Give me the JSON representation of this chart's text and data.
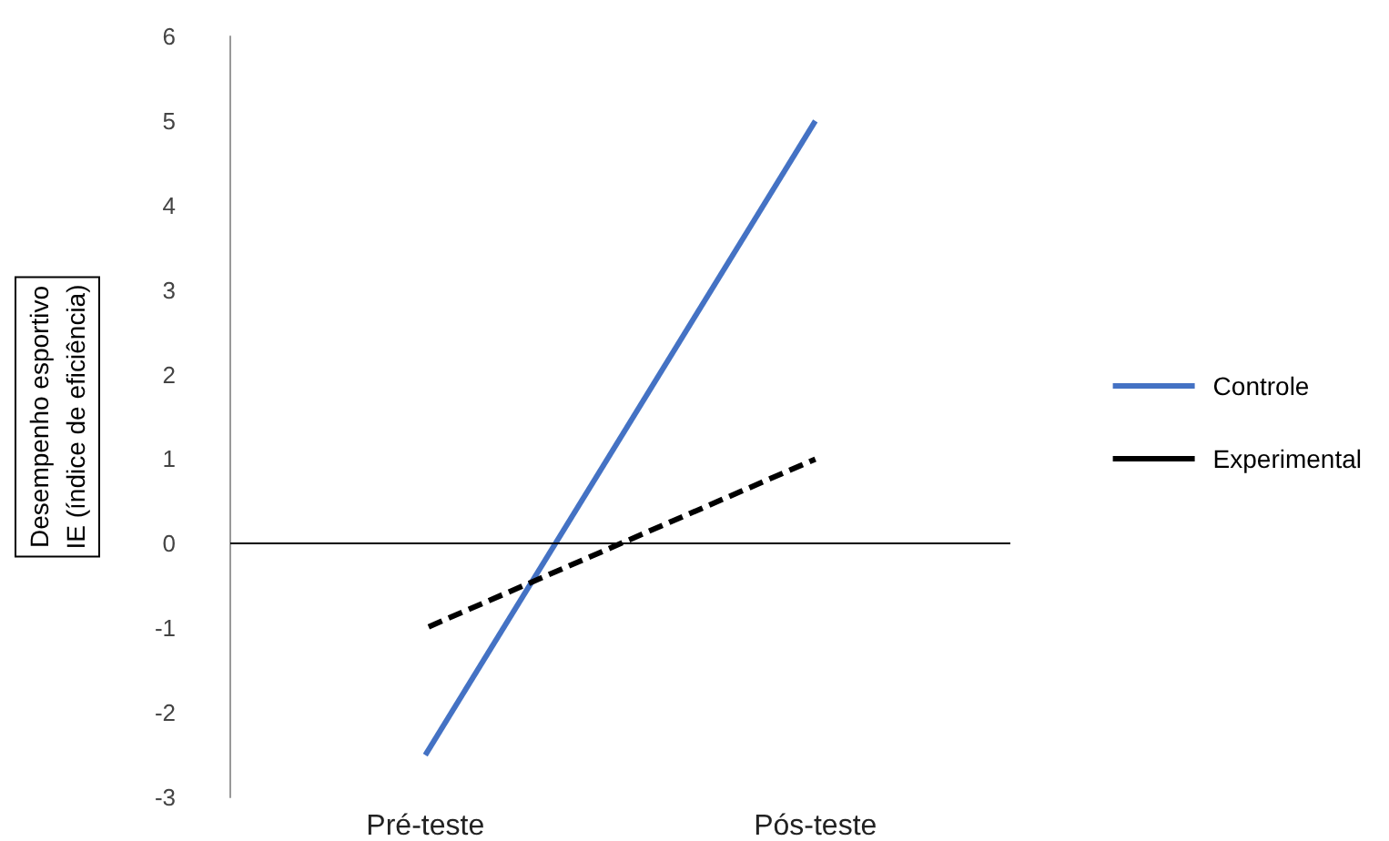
{
  "chart_data": {
    "type": "line",
    "ylabel": "Desempenho esportivo\nIE (índice de eficiência)",
    "categories": [
      "Pré-teste",
      "Pós-teste"
    ],
    "series": [
      {
        "name": "Controle",
        "color": "#4472c4",
        "values": [
          -2.5,
          5
        ],
        "line_style": "solid"
      },
      {
        "name": "Experimental",
        "color": "#000000",
        "values": [
          -1,
          1
        ],
        "line_style": "dashed"
      }
    ],
    "ref_lines": [
      {
        "axis": "y",
        "value": 0,
        "color": "#000000",
        "line_style": "solid"
      }
    ],
    "ylim": [
      -3,
      6
    ],
    "yticks": [
      -3,
      -2,
      -1,
      0,
      1,
      2,
      3,
      4,
      5,
      6
    ],
    "grid": false,
    "legend": "right",
    "marker": "none"
  }
}
